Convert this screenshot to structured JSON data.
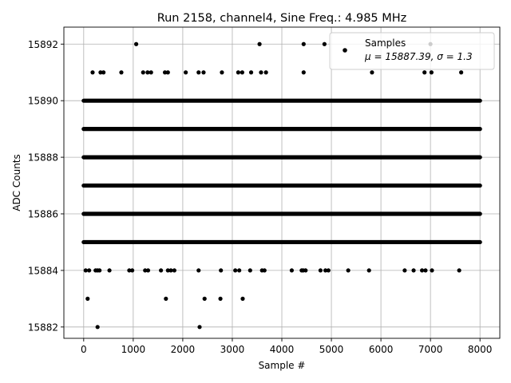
{
  "chart_data": {
    "type": "scatter",
    "title": "Run 2158, channel4, Sine Freq.: 4.985 MHz",
    "xlabel": "Sample #",
    "ylabel": "ADC Counts",
    "xlim": [
      -400,
      8400
    ],
    "ylim": [
      15881.6,
      15892.6
    ],
    "x_ticks": [
      "0",
      "1000",
      "2000",
      "3000",
      "4000",
      "5000",
      "6000",
      "7000",
      "8000"
    ],
    "y_ticks": [
      "15882",
      "15884",
      "15886",
      "15888",
      "15890",
      "15892"
    ],
    "grid": true,
    "legend": {
      "placement": "upper-right",
      "entries": [
        {
          "name": "Samples",
          "stats": "μ = 15887.39, σ = 1.3"
        }
      ]
    },
    "marker_color": "#000000",
    "series": [
      {
        "name": "Samples",
        "n_samples": 8000,
        "dense_levels": [
          15885,
          15886,
          15887,
          15888,
          15889,
          15890
        ],
        "points": [
          {
            "x": 40,
            "y": 15884
          },
          {
            "x": 110,
            "y": 15884
          },
          {
            "x": 240,
            "y": 15884
          },
          {
            "x": 280,
            "y": 15884
          },
          {
            "x": 320,
            "y": 15884
          },
          {
            "x": 520,
            "y": 15884
          },
          {
            "x": 920,
            "y": 15884
          },
          {
            "x": 980,
            "y": 15884
          },
          {
            "x": 1240,
            "y": 15884
          },
          {
            "x": 1300,
            "y": 15884
          },
          {
            "x": 1560,
            "y": 15884
          },
          {
            "x": 1700,
            "y": 15884
          },
          {
            "x": 1760,
            "y": 15884
          },
          {
            "x": 1830,
            "y": 15884
          },
          {
            "x": 2320,
            "y": 15884
          },
          {
            "x": 2770,
            "y": 15884
          },
          {
            "x": 3060,
            "y": 15884
          },
          {
            "x": 3140,
            "y": 15884
          },
          {
            "x": 3360,
            "y": 15884
          },
          {
            "x": 3600,
            "y": 15884
          },
          {
            "x": 3650,
            "y": 15884
          },
          {
            "x": 4200,
            "y": 15884
          },
          {
            "x": 4400,
            "y": 15884
          },
          {
            "x": 4430,
            "y": 15884
          },
          {
            "x": 4480,
            "y": 15884
          },
          {
            "x": 4780,
            "y": 15884
          },
          {
            "x": 4880,
            "y": 15884
          },
          {
            "x": 4940,
            "y": 15884
          },
          {
            "x": 5340,
            "y": 15884
          },
          {
            "x": 5760,
            "y": 15884
          },
          {
            "x": 6480,
            "y": 15884
          },
          {
            "x": 6660,
            "y": 15884
          },
          {
            "x": 6830,
            "y": 15884
          },
          {
            "x": 6900,
            "y": 15884
          },
          {
            "x": 7030,
            "y": 15884
          },
          {
            "x": 7580,
            "y": 15884
          },
          {
            "x": 80,
            "y": 15883
          },
          {
            "x": 1660,
            "y": 15883
          },
          {
            "x": 2440,
            "y": 15883
          },
          {
            "x": 2760,
            "y": 15883
          },
          {
            "x": 3210,
            "y": 15883
          },
          {
            "x": 280,
            "y": 15882
          },
          {
            "x": 2340,
            "y": 15882
          },
          {
            "x": 1060,
            "y": 15892
          },
          {
            "x": 3550,
            "y": 15892
          },
          {
            "x": 4440,
            "y": 15892
          },
          {
            "x": 4860,
            "y": 15892
          },
          {
            "x": 7000,
            "y": 15892
          },
          {
            "x": 180,
            "y": 15891
          },
          {
            "x": 340,
            "y": 15891
          },
          {
            "x": 400,
            "y": 15891
          },
          {
            "x": 760,
            "y": 15891
          },
          {
            "x": 1200,
            "y": 15891
          },
          {
            "x": 1290,
            "y": 15891
          },
          {
            "x": 1360,
            "y": 15891
          },
          {
            "x": 1640,
            "y": 15891
          },
          {
            "x": 1700,
            "y": 15891
          },
          {
            "x": 2060,
            "y": 15891
          },
          {
            "x": 2320,
            "y": 15891
          },
          {
            "x": 2420,
            "y": 15891
          },
          {
            "x": 2790,
            "y": 15891
          },
          {
            "x": 3120,
            "y": 15891
          },
          {
            "x": 3200,
            "y": 15891
          },
          {
            "x": 3380,
            "y": 15891
          },
          {
            "x": 3580,
            "y": 15891
          },
          {
            "x": 3680,
            "y": 15891
          },
          {
            "x": 4440,
            "y": 15891
          },
          {
            "x": 5820,
            "y": 15891
          },
          {
            "x": 6880,
            "y": 15891
          },
          {
            "x": 7020,
            "y": 15891
          },
          {
            "x": 7620,
            "y": 15891
          }
        ]
      }
    ]
  }
}
